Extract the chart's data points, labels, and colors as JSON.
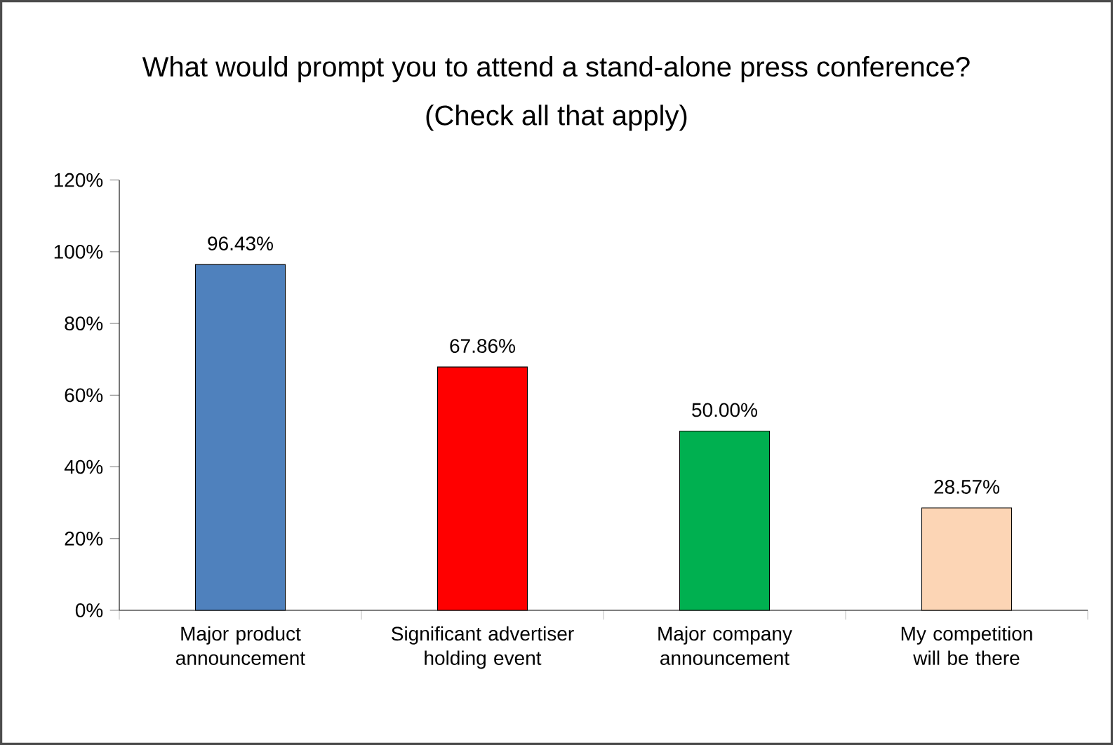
{
  "chart_data": {
    "type": "bar",
    "title": "What would prompt you to attend a stand-alone press conference?",
    "subtitle": "(Check all that apply)",
    "categories": [
      "Major product announcement",
      "Significant advertiser holding event",
      "Major company announcement",
      "My competition will be there"
    ],
    "values": [
      96.43,
      67.86,
      50.0,
      28.57
    ],
    "colors": [
      "#4f81bd",
      "#ff0000",
      "#00b050",
      "#fcd5b5"
    ],
    "value_labels": [
      "96.43%",
      "67.86%",
      "50.00%",
      "28.57%"
    ],
    "ylim": [
      0,
      120
    ],
    "yticks": [
      {
        "value": 0,
        "label": "0%"
      },
      {
        "value": 20,
        "label": "20%"
      },
      {
        "value": 40,
        "label": "40%"
      },
      {
        "value": 60,
        "label": "60%"
      },
      {
        "value": 80,
        "label": "80%"
      },
      {
        "value": 100,
        "label": "100%"
      },
      {
        "value": 120,
        "label": "120%"
      }
    ]
  }
}
